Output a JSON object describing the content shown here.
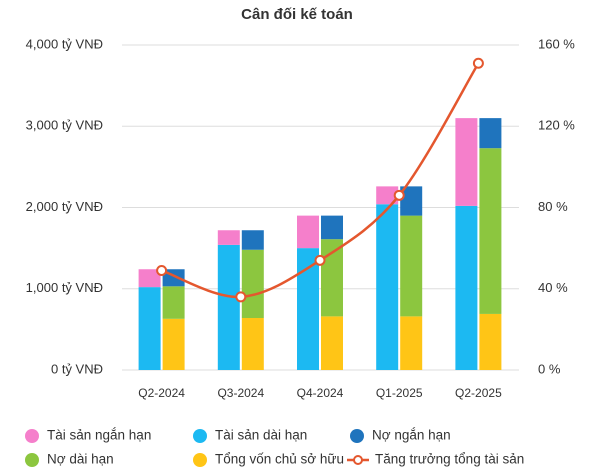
{
  "chart_data": {
    "type": "stacked_bar_line",
    "title": "Cân đối kế toán",
    "categories": [
      "Q2-2024",
      "Q3-2024",
      "Q4-2024",
      "Q1-2025",
      "Q2-2025"
    ],
    "ylim": [
      0,
      4000
    ],
    "yticks": [
      {
        "value": 0,
        "label": "0 tỷ VNĐ"
      },
      {
        "value": 1000,
        "label": "1,000 tỷ VNĐ"
      },
      {
        "value": 2000,
        "label": "2,000 tỷ VNĐ"
      },
      {
        "value": 3000,
        "label": "3,000 tỷ VNĐ"
      },
      {
        "value": 4000,
        "label": "4,000 tỷ VNĐ"
      }
    ],
    "y2lim": [
      0,
      160
    ],
    "y2ticks": [
      {
        "value": 0,
        "label": "0 %"
      },
      {
        "value": 40,
        "label": "40 %"
      },
      {
        "value": 80,
        "label": "80 %"
      },
      {
        "value": 120,
        "label": "120 %"
      },
      {
        "value": 160,
        "label": "160 %"
      }
    ],
    "grid": true,
    "legend": "bottom",
    "series": [
      {
        "name": "Tài sản ngắn hạn",
        "color": "#f57fcb",
        "stack": 0,
        "values": [
          220,
          180,
          400,
          220,
          1080
        ]
      },
      {
        "name": "Tài sản dài hạn",
        "color": "#1cb9f2",
        "stack": 0,
        "values": [
          1020,
          1540,
          1500,
          2040,
          2020
        ]
      },
      {
        "name": "Nợ ngắn hạn",
        "color": "#1f74bd",
        "stack": 1,
        "values": [
          210,
          240,
          290,
          360,
          370
        ]
      },
      {
        "name": "Nợ dài hạn",
        "color": "#8cc63f",
        "stack": 1,
        "values": [
          400,
          840,
          950,
          1240,
          2040
        ]
      },
      {
        "name": "Tổng vốn chủ sở hữu",
        "color": "#ffc516",
        "stack": 1,
        "values": [
          630,
          640,
          660,
          660,
          690
        ]
      },
      {
        "name": "Tăng trưởng tổng tài sản",
        "color": "#e4572e",
        "type": "line",
        "axis": "y2",
        "values": [
          49,
          36,
          54,
          86,
          151
        ]
      }
    ]
  }
}
